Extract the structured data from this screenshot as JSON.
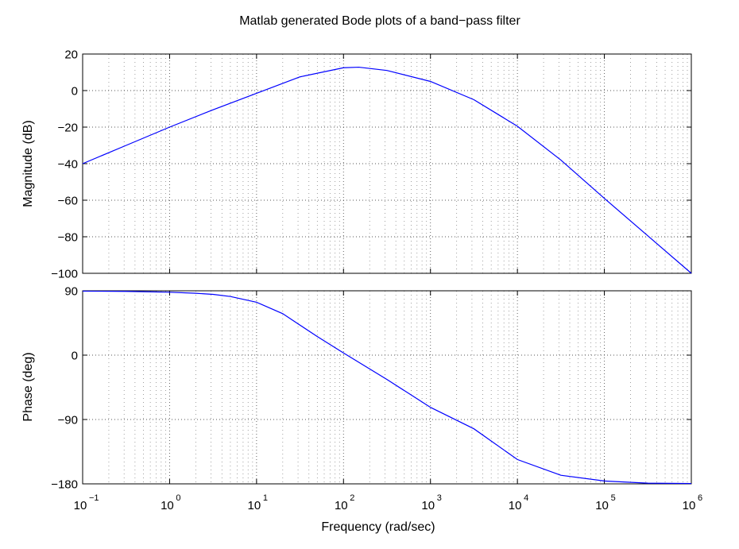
{
  "chart_data": {
    "type": "line",
    "title": "Matlab generated Bode plots of a band−pass filter",
    "xlabel": "Frequency  (rad/sec)",
    "x_scale": "log",
    "xlim": [
      0.1,
      1000000
    ],
    "x_ticks": [
      {
        "value": 0.1,
        "base": "10",
        "exp": "−1"
      },
      {
        "value": 1,
        "base": "10",
        "exp": "0"
      },
      {
        "value": 10,
        "base": "10",
        "exp": "1"
      },
      {
        "value": 100,
        "base": "10",
        "exp": "2"
      },
      {
        "value": 1000,
        "base": "10",
        "exp": "3"
      },
      {
        "value": 10000,
        "base": "10",
        "exp": "4"
      },
      {
        "value": 100000,
        "base": "10",
        "exp": "5"
      },
      {
        "value": 1000000,
        "base": "10",
        "exp": "6"
      }
    ],
    "grid": "dotted",
    "line_color": "#0000ff",
    "panels": [
      {
        "name": "magnitude",
        "ylabel": "Magnitude (dB)",
        "ylim": [
          -100,
          20
        ],
        "y_ticks": [
          {
            "value": 20,
            "label": "20"
          },
          {
            "value": 0,
            "label": "0"
          },
          {
            "value": -20,
            "label": "−20"
          },
          {
            "value": -40,
            "label": "−40"
          },
          {
            "value": -60,
            "label": "−60"
          },
          {
            "value": -80,
            "label": "−80"
          },
          {
            "value": -100,
            "label": "−100"
          }
        ],
        "x": [
          0.1,
          0.316,
          1,
          3.16,
          10,
          31.6,
          100,
          150,
          316,
          1000,
          3160,
          10000,
          31600,
          100000,
          316000,
          1000000
        ],
        "y": [
          -40,
          -30,
          -20,
          -10.5,
          -1.5,
          7.5,
          12.5,
          12.8,
          11,
          5,
          -5,
          -19.5,
          -38,
          -59,
          -79.5,
          -100
        ]
      },
      {
        "name": "phase",
        "ylabel": "Phase (deg)",
        "ylim": [
          -180,
          90
        ],
        "y_ticks": [
          {
            "value": 90,
            "label": "90"
          },
          {
            "value": 0,
            "label": "0"
          },
          {
            "value": -90,
            "label": "−90"
          },
          {
            "value": -180,
            "label": "−180"
          }
        ],
        "x": [
          0.1,
          0.316,
          1,
          2,
          3.16,
          5,
          10,
          20,
          31.6,
          50,
          100,
          316,
          1000,
          3160,
          10000,
          31600,
          100000,
          316000,
          1000000
        ],
        "y": [
          89.5,
          89.2,
          88,
          86.5,
          85,
          82,
          74,
          58,
          42,
          26,
          3,
          -34,
          -73,
          -103,
          -146,
          -168,
          -176,
          -179,
          -179.5
        ]
      }
    ]
  }
}
